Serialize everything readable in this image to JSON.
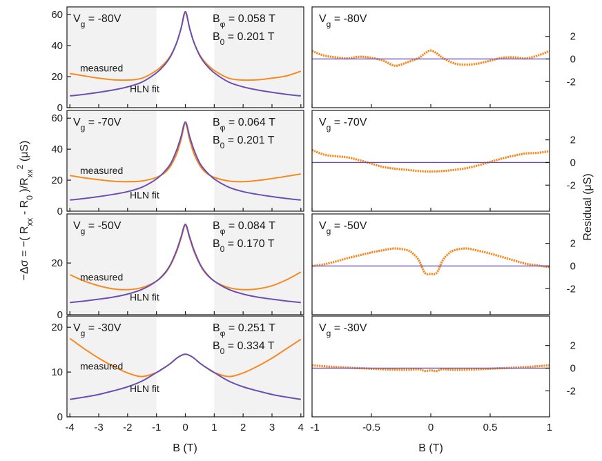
{
  "figure": {
    "left_xlabel": "B (T)",
    "right_xlabel": "B (T)",
    "left_ylabel_html": "−Δσ = −( R<tspan baseline-shift=\"sub\" font-size=\"12\">xx</tspan> - R<tspan baseline-shift=\"sub\" font-size=\"12\">0</tspan> )/R<tspan baseline-shift=\"sub\" font-size=\"12\">xx</tspan><tspan baseline-shift=\"super\" font-size=\"12\">2</tspan>  (μS)",
    "right_ylabel": "Residual (μS)",
    "measured_label": "measured",
    "fit_label": "HLN fit"
  },
  "colors": {
    "measured": "#F7891F",
    "fit": "#6A4FB0",
    "shade": "#F2F2F2",
    "axis": "#1a1a1a"
  },
  "panels": [
    {
      "vg": "-80V",
      "bphi": "0.058 T",
      "b0": "0.201 T"
    },
    {
      "vg": "-70V",
      "bphi": "0.064 T",
      "b0": "0.201 T"
    },
    {
      "vg": "-50V",
      "bphi": "0.084 T",
      "b0": "0.170 T"
    },
    {
      "vg": "-30V",
      "bphi": "0.251 T",
      "b0": "0.334 T"
    }
  ],
  "chart_data": [
    {
      "type": "line",
      "panel": "left-1",
      "xlim": [
        -4.1,
        4.1
      ],
      "ylim": [
        0,
        65
      ],
      "yticks": [
        0,
        20,
        40,
        60
      ],
      "xticks": [
        -4,
        -3,
        -2,
        -1,
        0,
        1,
        2,
        3,
        4
      ],
      "shaded_x_ranges": [
        [
          -4.1,
          -1
        ],
        [
          1,
          4.1
        ]
      ],
      "series": [
        {
          "name": "measured",
          "x": [
            -4,
            -3.5,
            -3,
            -2.5,
            -2,
            -1.5,
            -1,
            -0.7,
            -0.5,
            -0.3,
            -0.15,
            0,
            0.15,
            0.3,
            0.5,
            0.7,
            1,
            1.5,
            2,
            2.5,
            3,
            3.5,
            4
          ],
          "values": [
            22,
            20.5,
            19,
            18,
            17.8,
            19,
            24,
            29,
            34,
            42,
            51,
            61,
            51,
            42,
            34,
            29,
            24,
            19,
            17.8,
            18,
            19,
            20.5,
            23.5
          ]
        },
        {
          "name": "HLN fit",
          "x": [
            -4,
            -3.5,
            -3,
            -2.5,
            -2,
            -1.5,
            -1,
            -0.7,
            -0.5,
            -0.3,
            -0.15,
            0,
            0.15,
            0.3,
            0.5,
            0.7,
            1,
            1.5,
            2,
            2.5,
            3,
            3.5,
            4
          ],
          "values": [
            7.6,
            8.6,
            9.9,
            11.4,
            13.4,
            16.5,
            22.5,
            28,
            33.5,
            42,
            51,
            62,
            51,
            42,
            33.5,
            28,
            22.5,
            16.5,
            13.4,
            11.4,
            9.9,
            8.6,
            7.6
          ]
        }
      ]
    },
    {
      "type": "line",
      "panel": "left-2",
      "xlim": [
        -4.1,
        4.1
      ],
      "ylim": [
        0,
        65
      ],
      "yticks": [
        0,
        20,
        40,
        60
      ],
      "xticks": [
        -4,
        -3,
        -2,
        -1,
        0,
        1,
        2,
        3,
        4
      ],
      "shaded_x_ranges": [
        [
          -4.1,
          -1
        ],
        [
          1,
          4.1
        ]
      ],
      "series": [
        {
          "name": "measured",
          "x": [
            -4,
            -3.5,
            -3,
            -2.5,
            -2,
            -1.5,
            -1,
            -0.7,
            -0.5,
            -0.3,
            -0.15,
            0,
            0.15,
            0.3,
            0.5,
            0.7,
            1,
            1.5,
            2,
            2.5,
            3,
            3.5,
            4
          ],
          "values": [
            23,
            21.5,
            20.3,
            19.3,
            19,
            19.5,
            21.8,
            25,
            29.5,
            37,
            46,
            56.5,
            46,
            37,
            29.5,
            25,
            21.8,
            19.5,
            19,
            19.8,
            21,
            22.5,
            24
          ]
        },
        {
          "name": "HLN fit",
          "x": [
            -4,
            -3.5,
            -3,
            -2.5,
            -2,
            -1.5,
            -1,
            -0.7,
            -0.5,
            -0.3,
            -0.15,
            0,
            0.15,
            0.3,
            0.5,
            0.7,
            1,
            1.5,
            2,
            2.5,
            3,
            3.5,
            4
          ],
          "values": [
            7.2,
            8.2,
            9.4,
            10.8,
            12.6,
            15.5,
            20.8,
            26,
            31,
            39.5,
            48,
            57.5,
            48,
            39.5,
            31,
            26,
            20.8,
            15.5,
            12.6,
            10.8,
            9.4,
            8.2,
            7.2
          ]
        }
      ]
    },
    {
      "type": "line",
      "panel": "left-3",
      "xlim": [
        -4.1,
        4.1
      ],
      "ylim": [
        0,
        39
      ],
      "yticks": [
        0,
        20
      ],
      "xticks": [
        -4,
        -3,
        -2,
        -1,
        0,
        1,
        2,
        3,
        4
      ],
      "shaded_x_ranges": [
        [
          -4.1,
          -1
        ],
        [
          1,
          4.1
        ]
      ],
      "series": [
        {
          "name": "measured",
          "x": [
            -4,
            -3.5,
            -3,
            -2.5,
            -2,
            -1.5,
            -1,
            -0.7,
            -0.5,
            -0.3,
            -0.15,
            0,
            0.15,
            0.3,
            0.5,
            0.7,
            1,
            1.5,
            2,
            2.5,
            3,
            3.5,
            4
          ],
          "values": [
            15.5,
            13,
            11.2,
            10,
            9.7,
            10.5,
            13,
            16,
            19.5,
            24.5,
            29.5,
            34.5,
            29.5,
            24.5,
            19.5,
            16,
            13,
            10.5,
            9.7,
            10,
            11.2,
            13.5,
            16.5
          ]
        },
        {
          "name": "HLN fit",
          "x": [
            -4,
            -3.5,
            -3,
            -2.5,
            -2,
            -1.5,
            -1,
            -0.7,
            -0.5,
            -0.3,
            -0.15,
            0,
            0.15,
            0.3,
            0.5,
            0.7,
            1,
            1.5,
            2,
            2.5,
            3,
            3.5,
            4
          ],
          "values": [
            4.7,
            5.3,
            6,
            6.8,
            8,
            9.8,
            13,
            16.3,
            19.8,
            25,
            30,
            35,
            30,
            25,
            19.8,
            16.3,
            13,
            9.8,
            8,
            6.8,
            6,
            5.3,
            4.7
          ]
        }
      ]
    },
    {
      "type": "line",
      "panel": "left-4",
      "xlim": [
        -4.1,
        4.1
      ],
      "ylim": [
        0,
        22.5
      ],
      "yticks": [
        0,
        10,
        20
      ],
      "xticks": [
        -4,
        -3,
        -2,
        -1,
        0,
        1,
        2,
        3,
        4
      ],
      "shaded_x_ranges": [
        [
          -4.1,
          -1
        ],
        [
          1,
          4.1
        ]
      ],
      "series": [
        {
          "name": "measured",
          "x": [
            -4,
            -3.5,
            -3,
            -2.5,
            -2,
            -1.5,
            -1,
            -0.7,
            -0.5,
            -0.3,
            -0.15,
            0,
            0.15,
            0.3,
            0.5,
            0.7,
            1,
            1.5,
            2,
            2.5,
            3,
            3.5,
            4
          ],
          "values": [
            17.5,
            15.2,
            13.1,
            11.3,
            9.8,
            9,
            9.9,
            11.1,
            12,
            13.1,
            13.7,
            14,
            13.7,
            13.1,
            12,
            11.1,
            9.9,
            9,
            9.8,
            11.3,
            13.1,
            15.2,
            17.3
          ]
        },
        {
          "name": "HLN fit",
          "x": [
            -4,
            -3.5,
            -3,
            -2.5,
            -2,
            -1.5,
            -1,
            -0.7,
            -0.5,
            -0.3,
            -0.15,
            0,
            0.15,
            0.3,
            0.5,
            0.7,
            1,
            1.5,
            2,
            2.5,
            3,
            3.5,
            4
          ],
          "values": [
            3.9,
            4.4,
            5,
            5.8,
            6.7,
            8,
            9.9,
            11.1,
            12,
            13.1,
            13.7,
            14,
            13.7,
            13.1,
            12,
            11.1,
            9.9,
            8,
            6.7,
            5.8,
            5,
            4.4,
            3.9
          ]
        }
      ]
    },
    {
      "type": "line",
      "panel": "right-1",
      "xlim": [
        -1,
        1
      ],
      "ylim": [
        -4.3,
        4.6
      ],
      "yticks": [
        -2,
        0,
        2
      ],
      "xticks": [
        -1,
        -0.5,
        0,
        0.5,
        1
      ],
      "series": [
        {
          "name": "residual",
          "x": [
            -1,
            -0.9,
            -0.8,
            -0.7,
            -0.6,
            -0.5,
            -0.4,
            -0.3,
            -0.2,
            -0.1,
            -0.05,
            0,
            0.05,
            0.1,
            0.2,
            0.3,
            0.4,
            0.5,
            0.6,
            0.7,
            0.8,
            0.9,
            1
          ],
          "values": [
            0.7,
            0.3,
            0.15,
            0.05,
            0.2,
            0.1,
            -0.15,
            -0.6,
            -0.3,
            0.1,
            0.5,
            0.75,
            0.5,
            0.1,
            -0.4,
            -0.5,
            -0.4,
            -0.15,
            0.1,
            0.15,
            0.05,
            0.3,
            0.7
          ]
        },
        {
          "name": "zero",
          "x": [
            -1,
            1
          ],
          "values": [
            0,
            0
          ]
        }
      ]
    },
    {
      "type": "line",
      "panel": "right-2",
      "xlim": [
        -1,
        1
      ],
      "ylim": [
        -4.3,
        4.6
      ],
      "yticks": [
        -2,
        0,
        2
      ],
      "xticks": [
        -1,
        -0.5,
        0,
        0.5,
        1
      ],
      "series": [
        {
          "name": "residual",
          "x": [
            -1,
            -0.9,
            -0.8,
            -0.7,
            -0.6,
            -0.5,
            -0.4,
            -0.3,
            -0.2,
            -0.1,
            0,
            0.1,
            0.2,
            0.3,
            0.4,
            0.5,
            0.6,
            0.7,
            0.8,
            0.9,
            1
          ],
          "values": [
            1.1,
            0.7,
            0.55,
            0.45,
            0.2,
            -0.1,
            -0.4,
            -0.55,
            -0.65,
            -0.75,
            -0.8,
            -0.75,
            -0.65,
            -0.5,
            -0.25,
            0.05,
            0.35,
            0.6,
            0.8,
            0.85,
            1.0
          ]
        },
        {
          "name": "zero",
          "x": [
            -1,
            1
          ],
          "values": [
            0,
            0
          ]
        }
      ]
    },
    {
      "type": "line",
      "panel": "right-3",
      "xlim": [
        -1,
        1
      ],
      "ylim": [
        -4.3,
        4.6
      ],
      "yticks": [
        -2,
        0,
        2
      ],
      "xticks": [
        -1,
        -0.5,
        0,
        0.5,
        1
      ],
      "series": [
        {
          "name": "residual",
          "x": [
            -1,
            -0.9,
            -0.8,
            -0.7,
            -0.6,
            -0.5,
            -0.4,
            -0.3,
            -0.2,
            -0.15,
            -0.1,
            -0.05,
            0,
            0.05,
            0.1,
            0.15,
            0.2,
            0.3,
            0.4,
            0.5,
            0.6,
            0.7,
            0.8,
            0.9,
            1
          ],
          "values": [
            0,
            0.15,
            0.4,
            0.7,
            0.95,
            1.2,
            1.4,
            1.55,
            1.4,
            1.1,
            0.5,
            -0.6,
            -0.7,
            -0.6,
            0.5,
            1.1,
            1.4,
            1.55,
            1.35,
            1.1,
            0.8,
            0.5,
            0.2,
            0.05,
            -0.1
          ]
        },
        {
          "name": "zero",
          "x": [
            -1,
            1
          ],
          "values": [
            0,
            0
          ]
        }
      ]
    },
    {
      "type": "line",
      "panel": "right-4",
      "xlim": [
        -1,
        1
      ],
      "ylim": [
        -4.3,
        4.6
      ],
      "yticks": [
        -2,
        0,
        2
      ],
      "xticks": [
        -1,
        -0.5,
        0,
        0.5,
        1
      ],
      "series": [
        {
          "name": "residual",
          "x": [
            -1,
            -0.8,
            -0.6,
            -0.4,
            -0.2,
            -0.1,
            -0.05,
            0,
            0.05,
            0.1,
            0.2,
            0.4,
            0.6,
            0.8,
            1
          ],
          "values": [
            0.25,
            0.1,
            0.0,
            -0.1,
            -0.15,
            -0.1,
            -0.25,
            -0.2,
            -0.25,
            -0.1,
            -0.15,
            -0.1,
            0.0,
            0.1,
            0.25
          ]
        },
        {
          "name": "zero",
          "x": [
            -1,
            1
          ],
          "values": [
            0,
            0
          ]
        }
      ]
    }
  ]
}
